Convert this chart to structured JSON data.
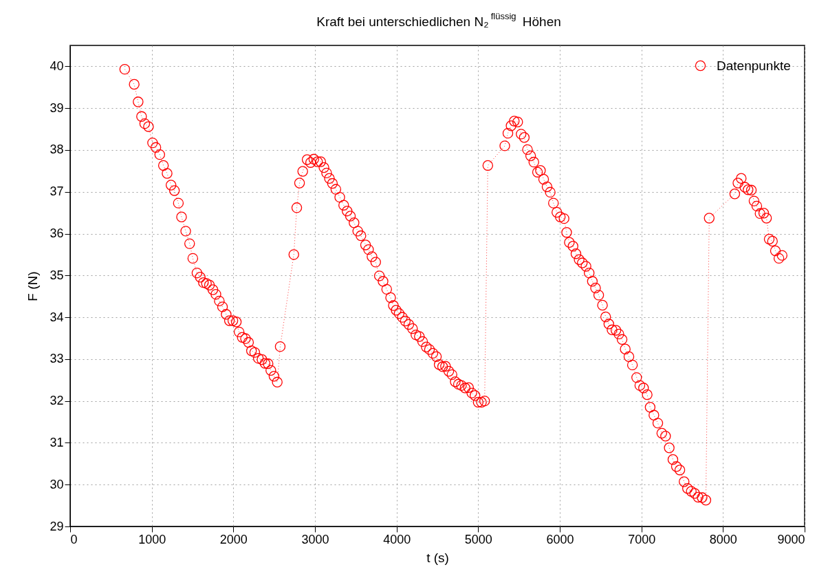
{
  "chart_data": {
    "type": "line",
    "title": "Kraft bei unterschiedlichen N₂$^{flüssig}$ Höhen",
    "xlabel": "t (s)",
    "ylabel": "F (N)",
    "xlim": [
      0,
      9000
    ],
    "xticks": [
      0,
      1000,
      2000,
      3000,
      4000,
      5000,
      6000,
      7000,
      8000,
      9000
    ],
    "ylim": [
      29,
      40.5
    ],
    "yticks": [
      29,
      30,
      31,
      32,
      33,
      34,
      35,
      36,
      37,
      38,
      39,
      40
    ],
    "grid": true,
    "legend": "top right",
    "marker": "circle",
    "line_style": "dotted",
    "series": [
      {
        "name": "Datenpunkte",
        "color": "#ff0000",
        "x": [
          669,
          785,
          833,
          875,
          914,
          960,
          1010,
          1050,
          1098,
          1143,
          1188,
          1236,
          1278,
          1326,
          1365,
          1416,
          1464,
          1503,
          1554,
          1594,
          1633,
          1670,
          1707,
          1749,
          1786,
          1828,
          1867,
          1912,
          1952,
          1994,
          2036,
          2070,
          2109,
          2149,
          2186,
          2222,
          2262,
          2306,
          2351,
          2388,
          2425,
          2459,
          2498,
          2538,
          2574,
          2741,
          2777,
          2811,
          2850,
          2904,
          2946,
          2986,
          3031,
          3070,
          3110,
          3143,
          3177,
          3214,
          3256,
          3304,
          3352,
          3394,
          3434,
          3479,
          3524,
          3563,
          3620,
          3656,
          3699,
          3744,
          3789,
          3834,
          3879,
          3927,
          3961,
          3995,
          4031,
          4071,
          4107,
          4150,
          4195,
          4237,
          4279,
          4319,
          4364,
          4403,
          4445,
          4488,
          4522,
          4564,
          4600,
          4640,
          4679,
          4719,
          4758,
          4795,
          4840,
          4882,
          4922,
          4961,
          5000,
          5040,
          5079,
          5118,
          5326,
          5364,
          5403,
          5442,
          5484,
          5526,
          5565,
          5604,
          5643,
          5682,
          5727,
          5763,
          5802,
          5844,
          5883,
          5922,
          5964,
          6006,
          6052,
          6084,
          6117,
          6162,
          6198,
          6237,
          6276,
          6321,
          6360,
          6399,
          6438,
          6477,
          6523,
          6562,
          6601,
          6640,
          6688,
          6724,
          6763,
          6802,
          6847,
          6890,
          6942,
          6981,
          7026,
          7071,
          7107,
          7153,
          7201,
          7250,
          7296,
          7341,
          7386,
          7429,
          7471,
          7523,
          7565,
          7611,
          7653,
          7695,
          7744,
          7790,
          7831,
          8144,
          8183,
          8223,
          8268,
          8307,
          8347,
          8380,
          8414,
          8454,
          8499,
          8533,
          8566,
          8606,
          8642,
          8685,
          8724
        ],
        "values": [
          39.93,
          39.57,
          39.15,
          38.8,
          38.63,
          38.56,
          38.17,
          38.06,
          37.89,
          37.63,
          37.44,
          37.16,
          37.03,
          36.73,
          36.4,
          36.06,
          35.76,
          35.41,
          35.06,
          34.96,
          34.83,
          34.81,
          34.77,
          34.66,
          34.55,
          34.39,
          34.25,
          34.07,
          33.92,
          33.92,
          33.89,
          33.65,
          33.52,
          33.49,
          33.4,
          33.2,
          33.16,
          33.02,
          32.99,
          32.9,
          32.89,
          32.73,
          32.59,
          32.45,
          33.3,
          35.5,
          36.62,
          37.21,
          37.49,
          37.77,
          37.7,
          37.78,
          37.72,
          37.72,
          37.58,
          37.45,
          37.32,
          37.2,
          37.06,
          36.87,
          36.68,
          36.54,
          36.42,
          36.26,
          36.06,
          35.95,
          35.73,
          35.62,
          35.45,
          35.32,
          34.99,
          34.86,
          34.67,
          34.47,
          34.28,
          34.17,
          34.09,
          34.0,
          33.91,
          33.83,
          33.73,
          33.58,
          33.54,
          33.42,
          33.29,
          33.23,
          33.14,
          33.06,
          32.87,
          32.82,
          32.83,
          32.71,
          32.63,
          32.46,
          32.4,
          32.37,
          32.31,
          32.32,
          32.19,
          32.13,
          31.97,
          31.97,
          32.0,
          37.63,
          38.1,
          38.4,
          38.58,
          38.69,
          38.67,
          38.38,
          38.3,
          38.01,
          37.86,
          37.71,
          37.47,
          37.51,
          37.3,
          37.12,
          36.99,
          36.73,
          36.51,
          36.4,
          36.36,
          36.03,
          35.79,
          35.7,
          35.52,
          35.38,
          35.3,
          35.22,
          35.06,
          34.86,
          34.7,
          34.53,
          34.29,
          34.01,
          33.84,
          33.7,
          33.69,
          33.6,
          33.47,
          33.24,
          33.06,
          32.86,
          32.56,
          32.37,
          32.31,
          32.15,
          31.85,
          31.66,
          31.47,
          31.23,
          31.16,
          30.88,
          30.6,
          30.43,
          30.35,
          30.07,
          29.91,
          29.84,
          29.79,
          29.7,
          29.69,
          29.63,
          36.37,
          36.95,
          37.21,
          37.32,
          37.11,
          37.05,
          37.04,
          36.78,
          36.66,
          36.48,
          36.49,
          36.37,
          35.87,
          35.82,
          35.59,
          35.41,
          35.48
        ]
      }
    ]
  }
}
